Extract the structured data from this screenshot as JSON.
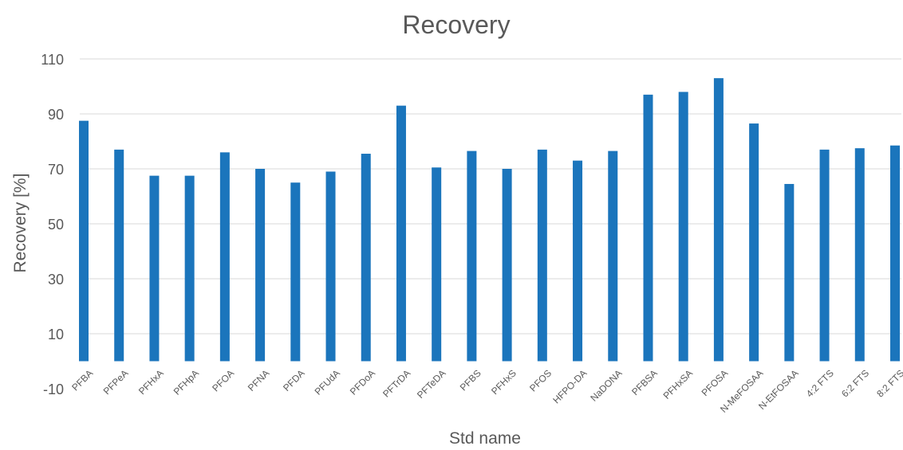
{
  "chart_data": {
    "type": "bar",
    "title": "Recovery",
    "xlabel": "Std name",
    "ylabel": "Recovery [%]",
    "ylim": [
      -10,
      110
    ],
    "yticks": [
      -10,
      10,
      30,
      50,
      70,
      90,
      110
    ],
    "grid": true,
    "legend": "none",
    "color": "#1b75bc",
    "categories": [
      "PFBA",
      "PFPeA",
      "PFHxA",
      "PFHpA",
      "PFOA",
      "PFNA",
      "PFDA",
      "PFUdA",
      "PFDoA",
      "PFTrDA",
      "PFTeDA",
      "PFBS",
      "PFHxS",
      "PFOS",
      "HFPO-DA",
      "NaDONA",
      "PFBSA",
      "PFHxSA",
      "PFOSA",
      "N-MeFOSAA",
      "N-EtFOSAA",
      "4:2 FTS",
      "6:2 FTS",
      "8:2 FTS"
    ],
    "values": [
      87.5,
      77,
      67.5,
      67.5,
      76,
      70,
      65,
      69,
      75.5,
      93,
      70.5,
      76.5,
      70,
      77,
      73,
      76.5,
      97,
      98,
      103,
      86.5,
      64.5,
      77,
      77.5,
      78.5
    ]
  }
}
